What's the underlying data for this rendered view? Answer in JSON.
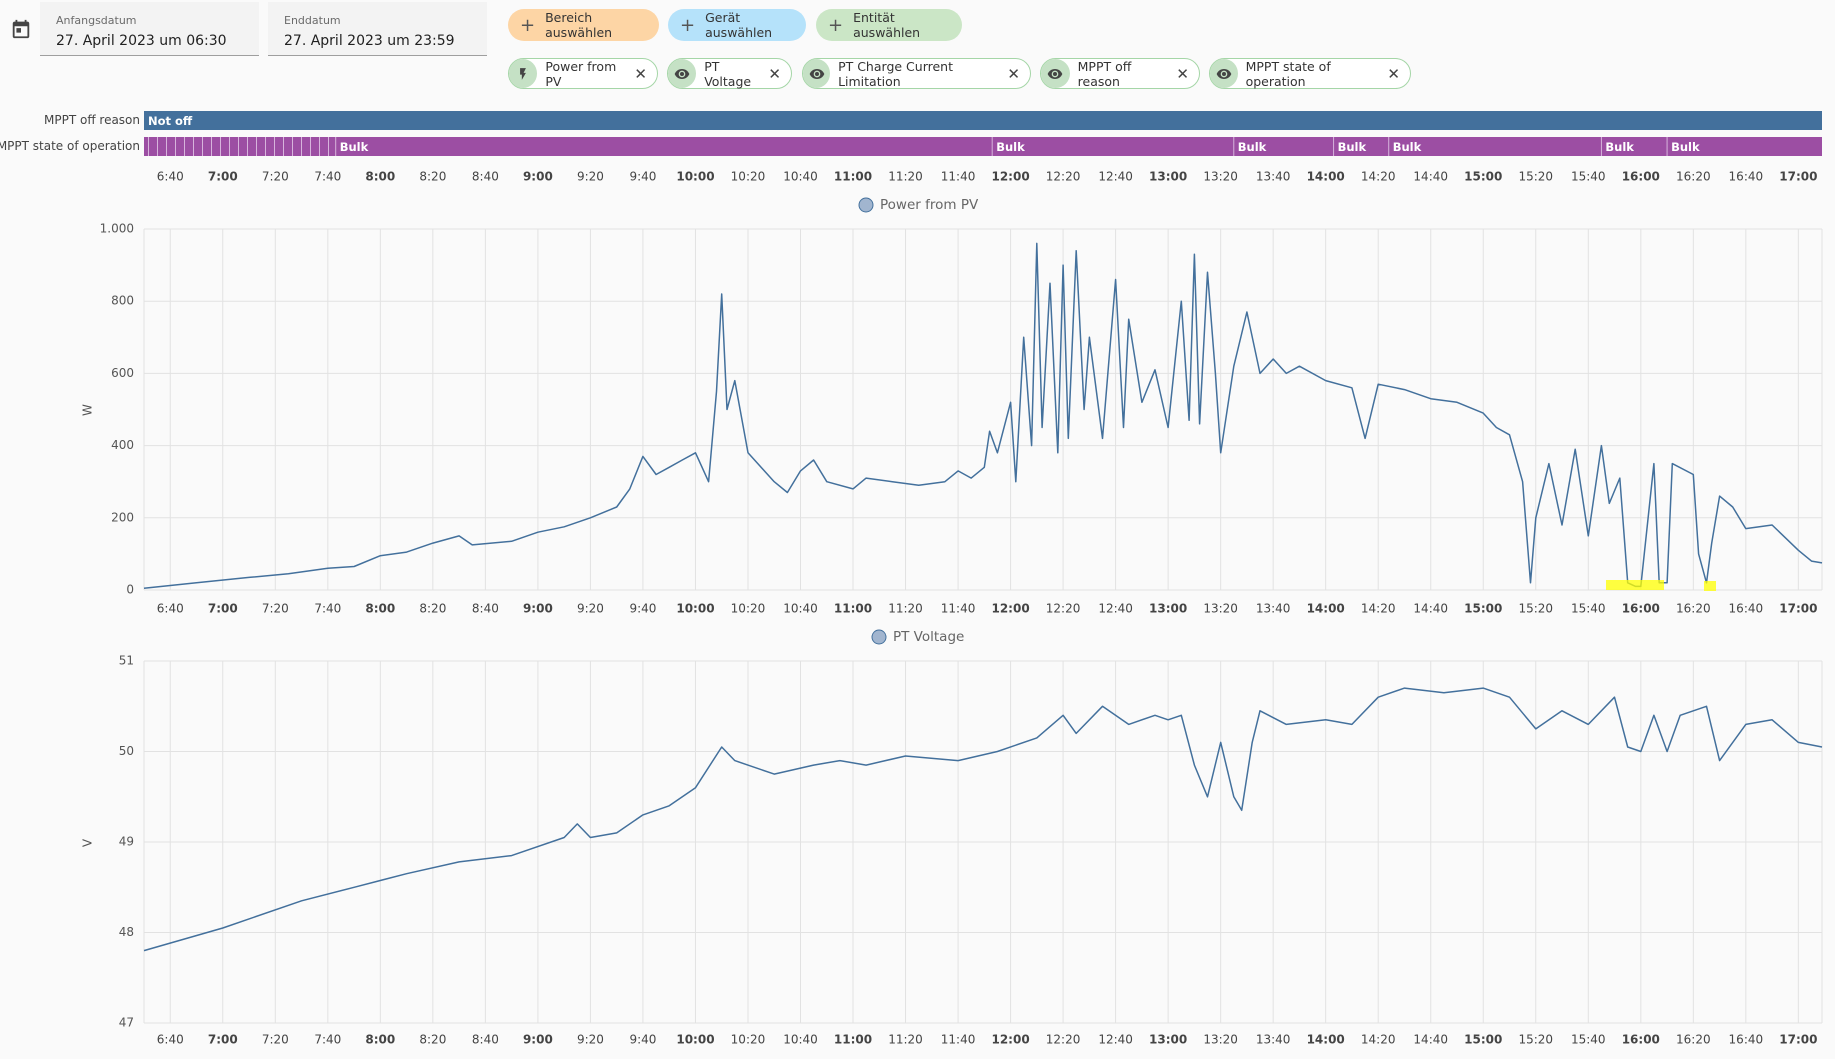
{
  "header": {
    "start_date": {
      "label": "Anfangsdatum",
      "value": "27. April 2023 um 06:30"
    },
    "end_date": {
      "label": "Enddatum",
      "value": "27. April 2023 um 23:59"
    },
    "buttons": [
      "Bereich auswählen",
      "Gerät auswählen",
      "Entität auswählen"
    ],
    "chips": [
      "Power from PV",
      "PT Voltage",
      "PT Charge Current Limitation",
      "MPPT off reason",
      "MPPT state of operation"
    ]
  },
  "timeline": {
    "xlim": [
      "6:30",
      "17:09"
    ],
    "xticks": [
      "6:40",
      "7:00",
      "7:20",
      "7:40",
      "8:00",
      "8:20",
      "8:40",
      "9:00",
      "9:20",
      "9:40",
      "10:00",
      "10:20",
      "10:40",
      "11:00",
      "11:20",
      "11:40",
      "12:00",
      "12:20",
      "12:40",
      "13:00",
      "13:20",
      "13:40",
      "14:00",
      "14:20",
      "14:40",
      "15:00",
      "15:20",
      "15:40",
      "16:00",
      "16:20",
      "16:40",
      "17:00"
    ],
    "rows": [
      {
        "label": "MPPT off reason",
        "color": "#43709c",
        "segments": [
          {
            "start": "6:30",
            "label": "Not off"
          }
        ]
      },
      {
        "label": "MPPT state of operation",
        "color": "#9c4ea3",
        "segments": [
          {
            "start": "6:30",
            "label": null
          },
          {
            "start": "7:43",
            "label": "Bulk"
          },
          {
            "start": "11:53",
            "label": "Bulk"
          },
          {
            "start": "13:25",
            "label": "Bulk"
          },
          {
            "start": "14:03",
            "label": "Bulk"
          },
          {
            "start": "14:24",
            "label": "Bulk"
          },
          {
            "start": "15:45",
            "label": "Bulk"
          },
          {
            "start": "16:10",
            "label": "Bulk"
          }
        ]
      }
    ]
  },
  "chart_data": [
    {
      "type": "line",
      "ylabel": "W",
      "xlim": [
        "6:30",
        "17:09"
      ],
      "xticks": [
        "6:40",
        "7:00",
        "7:20",
        "7:40",
        "8:00",
        "8:20",
        "8:40",
        "9:00",
        "9:20",
        "9:40",
        "10:00",
        "10:20",
        "10:40",
        "11:00",
        "11:20",
        "11:40",
        "12:00",
        "12:20",
        "12:40",
        "13:00",
        "13:20",
        "13:40",
        "14:00",
        "14:20",
        "14:40",
        "15:00",
        "15:20",
        "15:40",
        "16:00",
        "16:20",
        "16:40",
        "17:00"
      ],
      "ylim": [
        0,
        1000
      ],
      "yticks": [
        0,
        200,
        400,
        600,
        800,
        {
          "value": 1000,
          "label": "1.000"
        }
      ],
      "grid": true,
      "x": [
        "6:30",
        "6:50",
        "7:10",
        "7:25",
        "7:40",
        "7:50",
        "8:00",
        "8:10",
        "8:20",
        "8:30",
        "8:35",
        "8:50",
        "9:00",
        "9:10",
        "9:20",
        "9:30",
        "9:35",
        "9:40",
        "9:45",
        "9:50",
        "9:55",
        "10:00",
        "10:05",
        "10:08",
        "10:10",
        "10:12",
        "10:15",
        "10:20",
        "10:30",
        "10:35",
        "10:40",
        "10:45",
        "10:50",
        "11:00",
        "11:05",
        "11:15",
        "11:25",
        "11:35",
        "11:40",
        "11:45",
        "11:50",
        "11:52",
        "11:55",
        "12:00",
        "12:02",
        "12:05",
        "12:08",
        "12:10",
        "12:12",
        "12:15",
        "12:18",
        "12:20",
        "12:22",
        "12:25",
        "12:28",
        "12:30",
        "12:35",
        "12:40",
        "12:43",
        "12:45",
        "12:50",
        "12:55",
        "13:00",
        "13:05",
        "13:08",
        "13:10",
        "13:12",
        "13:15",
        "13:18",
        "13:20",
        "13:25",
        "13:30",
        "13:35",
        "13:40",
        "13:45",
        "13:50",
        "14:00",
        "14:10",
        "14:15",
        "14:20",
        "14:30",
        "14:40",
        "14:50",
        "15:00",
        "15:05",
        "15:10",
        "15:15",
        "15:18",
        "15:20",
        "15:25",
        "15:30",
        "15:35",
        "15:40",
        "15:45",
        "15:48",
        "15:52",
        "15:55",
        "15:58",
        "16:00",
        "16:05",
        "16:07",
        "16:10",
        "16:12",
        "16:20",
        "16:22",
        "16:25",
        "16:27",
        "16:30",
        "16:35",
        "16:40",
        "16:50",
        "17:00",
        "17:05",
        "17:09"
      ],
      "series": [
        {
          "name": "Power from PV",
          "color": "#43709c",
          "values": [
            5,
            20,
            35,
            45,
            60,
            65,
            95,
            105,
            130,
            150,
            125,
            135,
            160,
            175,
            200,
            230,
            280,
            370,
            320,
            340,
            360,
            380,
            300,
            550,
            820,
            500,
            580,
            380,
            300,
            270,
            330,
            360,
            300,
            280,
            310,
            300,
            290,
            300,
            330,
            310,
            340,
            440,
            380,
            520,
            300,
            700,
            400,
            960,
            450,
            850,
            380,
            900,
            420,
            940,
            500,
            700,
            420,
            860,
            450,
            750,
            520,
            610,
            450,
            800,
            470,
            930,
            460,
            880,
            600,
            380,
            620,
            770,
            600,
            640,
            600,
            620,
            580,
            560,
            420,
            570,
            555,
            530,
            520,
            490,
            450,
            430,
            300,
            20,
            200,
            350,
            180,
            390,
            150,
            400,
            240,
            310,
            20,
            10,
            10,
            350,
            20,
            20,
            350,
            320,
            100,
            20,
            130,
            260,
            230,
            170,
            180,
            110,
            80,
            75
          ]
        }
      ]
    },
    {
      "type": "line",
      "ylabel": "V",
      "xlim": [
        "6:30",
        "17:09"
      ],
      "xticks": [
        "6:40",
        "7:00",
        "7:20",
        "7:40",
        "8:00",
        "8:20",
        "8:40",
        "9:00",
        "9:20",
        "9:40",
        "10:00",
        "10:20",
        "10:40",
        "11:00",
        "11:20",
        "11:40",
        "12:00",
        "12:20",
        "12:40",
        "13:00",
        "13:20",
        "13:40",
        "14:00",
        "14:20",
        "14:40",
        "15:00",
        "15:20",
        "15:40",
        "16:00",
        "16:20",
        "16:40",
        "17:00"
      ],
      "ylim": [
        47,
        51
      ],
      "yticks": [
        47,
        48,
        49,
        50,
        51
      ],
      "grid": true,
      "x": [
        "6:30",
        "7:00",
        "7:30",
        "7:50",
        "8:10",
        "8:30",
        "8:50",
        "9:10",
        "9:15",
        "9:20",
        "9:30",
        "9:40",
        "9:50",
        "10:00",
        "10:10",
        "10:15",
        "10:30",
        "10:45",
        "10:55",
        "11:05",
        "11:20",
        "11:40",
        "11:55",
        "12:10",
        "12:20",
        "12:25",
        "12:35",
        "12:45",
        "12:55",
        "13:00",
        "13:05",
        "13:10",
        "13:15",
        "13:20",
        "13:25",
        "13:28",
        "13:32",
        "13:35",
        "13:45",
        "14:00",
        "14:10",
        "14:20",
        "14:30",
        "14:45",
        "15:00",
        "15:10",
        "15:20",
        "15:30",
        "15:40",
        "15:50",
        "15:55",
        "16:00",
        "16:05",
        "16:10",
        "16:15",
        "16:25",
        "16:30",
        "16:40",
        "16:50",
        "17:00",
        "17:09"
      ],
      "series": [
        {
          "name": "PT Voltage",
          "color": "#43709c",
          "values": [
            47.8,
            48.05,
            48.35,
            48.5,
            48.65,
            48.78,
            48.85,
            49.05,
            49.2,
            49.05,
            49.1,
            49.3,
            49.4,
            49.6,
            50.05,
            49.9,
            49.75,
            49.85,
            49.9,
            49.85,
            49.95,
            49.9,
            50,
            50.15,
            50.4,
            50.2,
            50.5,
            50.3,
            50.4,
            50.35,
            50.4,
            49.85,
            49.5,
            50.1,
            49.5,
            49.35,
            50.1,
            50.45,
            50.3,
            50.35,
            50.3,
            50.6,
            50.7,
            50.65,
            50.7,
            50.6,
            50.25,
            50.45,
            50.3,
            50.6,
            50.05,
            50.0,
            50.4,
            50.0,
            50.4,
            50.5,
            49.9,
            50.3,
            50.35,
            50.1,
            50.05
          ]
        }
      ]
    }
  ]
}
